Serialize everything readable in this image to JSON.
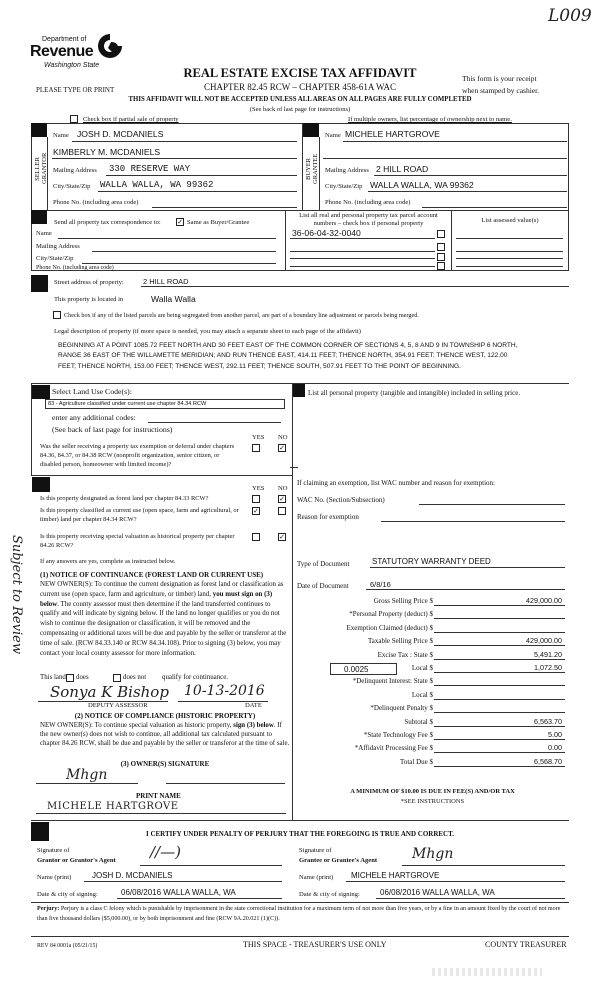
{
  "header": {
    "form_number_handwritten": "L009",
    "agency_line1": "Department of",
    "agency_name": "Revenue",
    "agency_state": "Washington State",
    "title": "REAL ESTATE EXCISE TAX AFFIDAVIT",
    "chapter": "CHAPTER 82.45 RCW – CHAPTER 458-61A WAC",
    "please_print": "PLEASE TYPE OR PRINT",
    "receipt_line1": "This form is your receipt",
    "receipt_line2": "when stamped by cashier.",
    "warning": "THIS AFFIDAVIT WILL NOT BE ACCEPTED UNLESS ALL AREAS ON ALL PAGES ARE FULLY COMPLETED",
    "see_back": "(See back of last page for instructions)",
    "partial_sale_label": "Check box if partial sale of property",
    "partial_sale_checked": false,
    "multiple_owners_note": "If multiple owners, list percentage of ownership next to name."
  },
  "seller": {
    "side_label_1": "SELLER",
    "side_label_2": "GRANTOR",
    "name_label": "Name",
    "name": "JOSH D. MCDANIELS",
    "name2": "KIMBERLY M. MCDANIELS",
    "mailing_label": "Mailing Address",
    "mailing": "330 RESERVE WAY",
    "city_label": "City/State/Zip",
    "city": "WALLA WALLA, WA  99362",
    "phone_label": "Phone No. (including area code)"
  },
  "buyer": {
    "side_label_1": "BUYER",
    "side_label_2": "GRANTEE",
    "name_label": "Name",
    "name": "MICHELE HARTGROVE",
    "mailing_label": "Mailing Address",
    "mailing": "2 HILL ROAD",
    "city_label": "City/State/Zip",
    "city": "WALLA WALLA, WA  99362",
    "phone_label": "Phone No. (including area code)"
  },
  "correspondence": {
    "label": "Send all property tax correspondence to:",
    "same_as_label": "Same as Buyer/Grantee",
    "same_as_checked": true,
    "name_label": "Name",
    "mailing_label": "Mailing Address",
    "city_label": "City/State/Zip",
    "phone_label": "Phone No. (including area code)"
  },
  "parcels": {
    "header_line1": "List all real and personal property tax parcel account",
    "header_line2": "numbers – check box if personal property",
    "assessed_header": "List assessed value(s)",
    "rows": [
      {
        "number": "36-06-04-32-0040",
        "personal": false
      },
      {
        "number": "",
        "personal": false
      },
      {
        "number": "",
        "personal": false
      },
      {
        "number": "",
        "personal": false
      }
    ]
  },
  "property": {
    "street_label": "Street address of property:",
    "street": "2 HILL ROAD",
    "located_label": "This property is located in",
    "located": "Walla Walla",
    "segregated_label": "Check box if any of the listed parcels are being segregated from another parcel, are part of a boundary line adjustment or parcels being merged.",
    "segregated_checked": false,
    "legal_label": "Legal description of property (if more space is needed, you may attach a separate sheet to each page of the affidavit)",
    "legal_description": "BEGINNING AT A POINT 1085.72 FEET NORTH AND 30 FEET EAST OF THE COMMON CORNER OF SECTIONS 4, 5, 8 AND 9 IN TOWNSHIP 6 NORTH, RANGE 36 EAST OF THE WILLAMETTE MERIDIAN; AND RUN THENCE EAST, 414.11 FEET; THENCE NORTH, 354.91 FEET; THENCE WEST, 122.00 FEET; THENCE NORTH, 153.00 FEET; THENCE WEST, 292.11 FEET; THENCE SOUTH, 507.91 FEET TO THE POINT OF BEGINNING."
  },
  "land_use": {
    "select_label": "Select Land Use Code(s):",
    "selected_code": "83 - Agriculture classified under current use chapter 84.34 RCW",
    "additional_label": "enter any additional codes:",
    "see_back": "(See back of last page for instructions)",
    "yes": "YES",
    "no": "NO",
    "exemption_question": "Was the seller receiving a property tax exemption or deferral under chapters 84.36, 84.37, or 84.38 RCW (nonprofit organization, senior citizen, or disabled person, homeowner with limited income)?",
    "exemption_yes": false,
    "exemption_no": true
  },
  "classification": {
    "yes": "YES",
    "no": "NO",
    "questions": [
      {
        "text": "Is this property designated as forest land per chapter 84.33 RCW?",
        "yes": false,
        "no": true
      },
      {
        "text": "Is this property classified as current use (open space, farm and agricultural, or timber) land per chapter 84.34 RCW?",
        "yes": true,
        "no": false
      },
      {
        "text": "Is this property receiving special valuation as historical property per chapter 84.26 RCW?",
        "yes": false,
        "no": true
      }
    ],
    "if_yes": "If any answers are yes, complete as instructed below.",
    "notice1_title": "(1) NOTICE OF CONTINUANCE (FOREST LAND OR CURRENT USE)",
    "notice1_a": "NEW OWNER(S): To continue the current designation as forest land or classification as current use (open space, farm and agriculture, or timber) land,",
    "notice1_bold": "you must sign on (3) below",
    "notice1_b": ". The county assessor must then determine if the land transferred continues to qualify and will indicate by signing below. If the land no longer qualifies or you do not wish to continue the designation or classification, it will be removed and the compensating or additional taxes will be due and payable by the seller or transferor at the time of sale. (RCW 84.33.140 or RCW 84.34.108). Prior to signing (3) below, you may contact your local county assessor for more information.",
    "this_land": "This land",
    "does": "does",
    "does_not": "does not",
    "qualify": "qualify for continuance.",
    "does_checked": false,
    "does_not_checked": false,
    "assessor_signature": "Sonya K Bishop",
    "assessor_date": "10-13-2016",
    "deputy_assessor": "DEPUTY ASSESSOR",
    "date_label": "DATE",
    "notice2_title": "(2) NOTICE OF COMPLIANCE (HISTORIC PROPERTY)",
    "notice2_a": "NEW OWNER(S): To continue special valuation as historic property,",
    "notice2_bold": "sign (3) below",
    "notice2_b": ". If the new owner(s) does not wish to continue, all additional tax calculated pursuant to chapter 84.26 RCW, shall be due and payable by the seller or transferor at the time of sale.",
    "notice3_title": "(3) OWNER(S) SIGNATURE",
    "owner_signature": "Mhgn",
    "print_name_label": "PRINT NAME",
    "print_name": "MICHELE HARTGROVE",
    "margin_note": "Subject to Review"
  },
  "personal_property": {
    "label": "List all  personal property (tangible and intangible) included in selling price."
  },
  "exemption": {
    "label": "If claiming an exemption, list WAC number and reason for exemption:",
    "wac_label": "WAC No. (Section/Subsection)",
    "reason_label": "Reason for exemption"
  },
  "tax": {
    "doc_type_label": "Type of Document",
    "doc_type": "STATUTORY WARRANTY DEED",
    "doc_date_label": "Date of Document",
    "doc_date": "6/8/16",
    "local_rate": "0.0025",
    "rows": [
      {
        "label": "Gross Selling Price $",
        "value": "429,000.00"
      },
      {
        "label": "*Personal Property (deduct) $",
        "value": ""
      },
      {
        "label": "Exemption Claimed (deduct) $",
        "value": ""
      },
      {
        "label": "Taxable Selling Price $",
        "value": "429,000.00"
      },
      {
        "label": "Excise Tax : State $",
        "value": "5,491.20"
      },
      {
        "label": "Local $",
        "value": "1,072.50"
      },
      {
        "label": "*Delinquent Interest: State $",
        "value": ""
      },
      {
        "label": "Local $",
        "value": ""
      },
      {
        "label": "*Delinquent Penalty $",
        "value": ""
      },
      {
        "label": "Subtotal $",
        "value": "6,563.70"
      },
      {
        "label": "*State Technology Fee $",
        "value": "5.00"
      },
      {
        "label": "*Affidavit Processing Fee $",
        "value": "0.00"
      },
      {
        "label": "Total Due $",
        "value": "6,568.70"
      }
    ],
    "minimum_note": "A MINIMUM OF $10.00 IS DUE IN FEE(S) AND/OR TAX",
    "see_instructions": "*SEE INSTRUCTIONS"
  },
  "certification": {
    "statement": "I CERTIFY UNDER PENALTY OF PERJURY THAT THE FOREGOING IS TRUE AND CORRECT.",
    "signature_of": "Signature of",
    "grantor_agent_label": "Grantor or Grantor's Agent",
    "grantee_agent_label": "Grantee or Grantee's Agent",
    "grantor_signature": "//—)",
    "grantee_signature": "Mhgn",
    "name_print_label": "Name (print)",
    "grantor_name": "JOSH D. MCDANIELS",
    "grantee_name": "MICHELE HARTGROVE",
    "date_city_label": "Date & city of signing:",
    "grantor_date_city": "06/08/2016  WALLA WALLA, WA",
    "grantee_date_city": "06/08/2016  WALLA WALLA, WA"
  },
  "footer": {
    "perjury_label": "Perjury:",
    "perjury_text": "Perjury is a class C felony which is punishable by imprisonment in the state correctional institution for a maximum term of not more than five years, or by a fine in an amount fixed by the court of not more than five thousand dollars ($5,000.00), or by both imprisonment and fine (RCW 9A.20.021 (1)(C)).",
    "form_id": "REV 84 0001a (05/21/15)",
    "treasurer_space": "THIS SPACE - TREASURER'S USE ONLY",
    "county_treasurer": "COUNTY TREASURER"
  }
}
